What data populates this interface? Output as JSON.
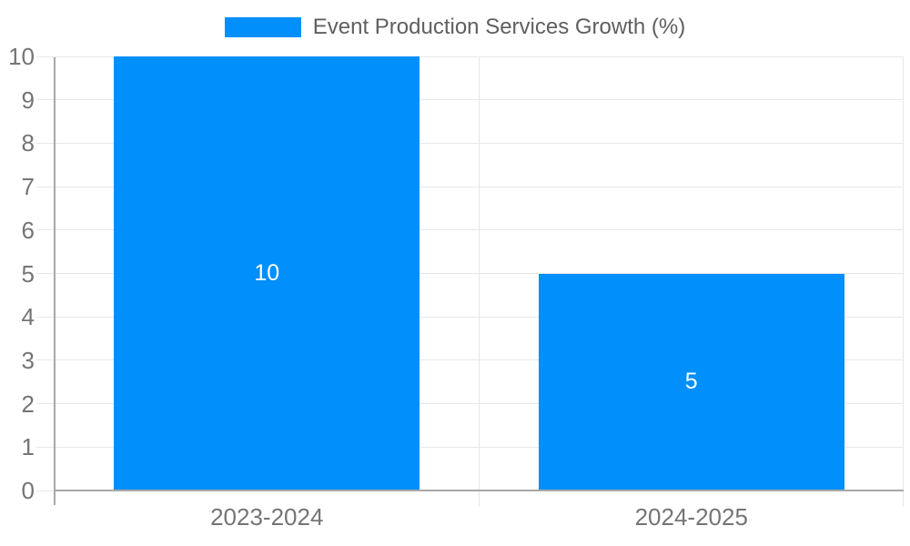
{
  "chart_data": {
    "type": "bar",
    "title": "Event Production Services Growth (%)",
    "categories": [
      "2023-2024",
      "2024-2025"
    ],
    "values": [
      10,
      5
    ],
    "data_labels": [
      "10",
      "5"
    ],
    "xlabel": "",
    "ylabel": "",
    "ylim": [
      0,
      10
    ],
    "yticks": [
      0,
      1,
      2,
      3,
      4,
      5,
      6,
      7,
      8,
      9,
      10
    ],
    "grid": true,
    "legend_position": "top",
    "bar_width_ratio": 0.72
  },
  "legend": {
    "label": "Event Production Services Growth (%)"
  },
  "colors": {
    "bar": "#008FFB",
    "grid": "#e7e7e7",
    "axis": "#a8a8a8",
    "tick_label": "#757575",
    "legend_text": "#5f5f5f",
    "data_label": "#ffffff",
    "background": "#ffffff"
  }
}
